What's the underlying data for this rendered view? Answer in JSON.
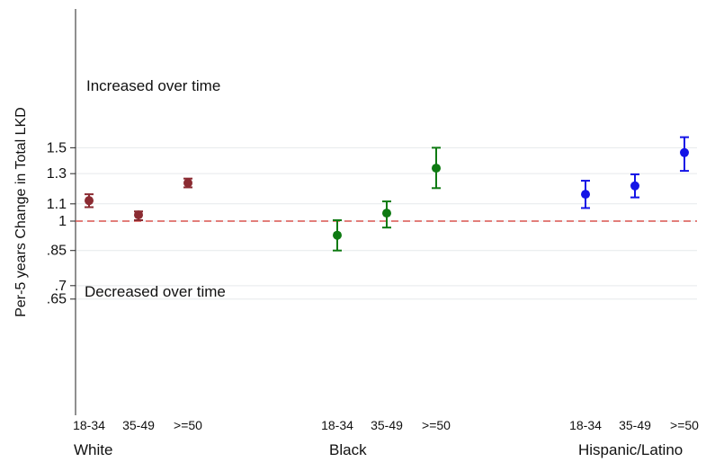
{
  "chart_data": {
    "type": "scatter",
    "title": "",
    "xlabel": "",
    "ylabel": "Per-5 years Change in Total LKD",
    "y_scale": "log",
    "ylim": [
      0.63,
      1.67
    ],
    "yticks": [
      0.65,
      0.7,
      0.85,
      1,
      1.1,
      1.3,
      1.5
    ],
    "ytick_labels": [
      ".65",
      ".7",
      ".85",
      "1",
      "1.1",
      "1.3",
      "1.5"
    ],
    "grid": true,
    "reference_line": 1,
    "annotations": [
      "Increased over time",
      "Decreased over time"
    ],
    "groups": [
      {
        "name": "White",
        "color": "#8b2b32",
        "categories": [
          "18-34",
          "35-49",
          ">=50"
        ],
        "estimate": [
          1.12,
          1.035,
          1.235
        ],
        "lower": [
          1.08,
          1.005,
          1.205
        ],
        "upper": [
          1.16,
          1.055,
          1.265
        ]
      },
      {
        "name": "Black",
        "color": "#0e7a12",
        "categories": [
          "18-34",
          "35-49",
          ">=50"
        ],
        "estimate": [
          0.925,
          1.045,
          1.34
        ],
        "lower": [
          0.85,
          0.965,
          1.2
        ],
        "upper": [
          1.005,
          1.115,
          1.5
        ]
      },
      {
        "name": "Hispanic/Latino",
        "color": "#1414e6",
        "categories": [
          "18-34",
          "35-49",
          ">=50"
        ],
        "estimate": [
          1.16,
          1.215,
          1.46
        ],
        "lower": [
          1.075,
          1.14,
          1.32
        ],
        "upper": [
          1.25,
          1.295,
          1.59
        ]
      }
    ]
  }
}
